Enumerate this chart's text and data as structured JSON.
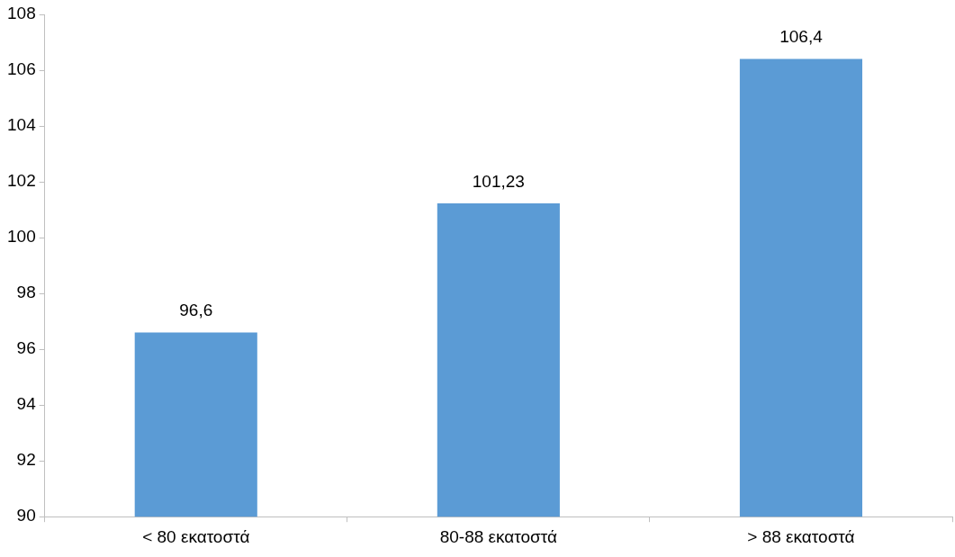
{
  "chart_data": {
    "type": "bar",
    "categories": [
      "< 80 εκατοστά",
      "80-88 εκατοστά",
      "> 88 εκατοστά"
    ],
    "values": [
      96.6,
      101.23,
      106.4
    ],
    "value_labels": [
      "96,6",
      "101,23",
      "106,4"
    ],
    "color": "#5b9bd5",
    "ylim": [
      90,
      108
    ],
    "yticks": [
      90,
      92,
      94,
      96,
      98,
      100,
      102,
      104,
      106,
      108
    ],
    "grid": false,
    "legend": false
  }
}
